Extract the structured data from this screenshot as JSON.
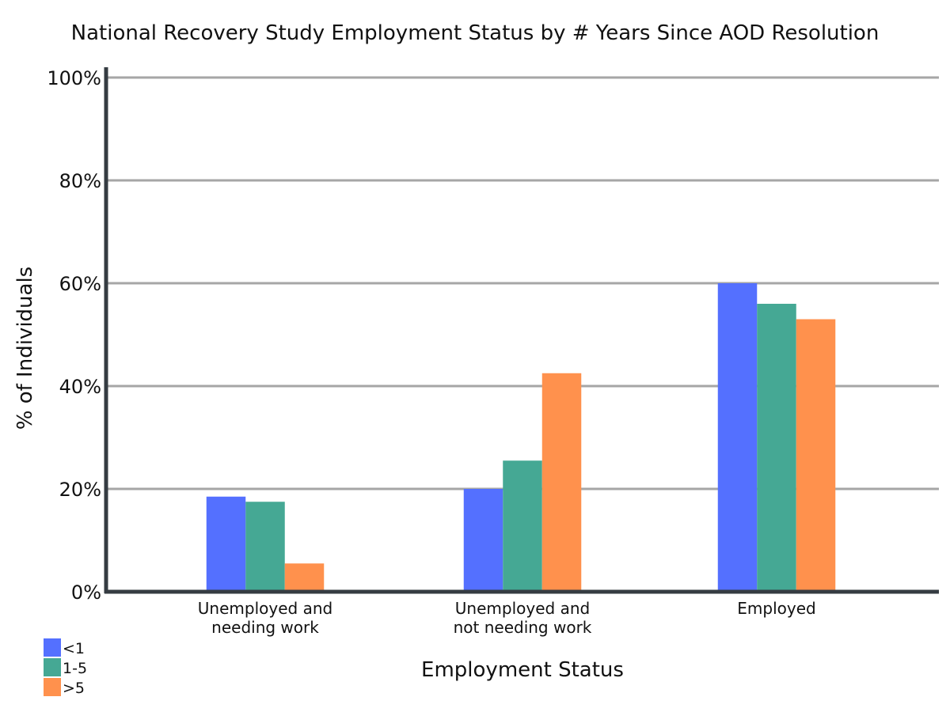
{
  "chart_data": {
    "type": "bar",
    "title": "National Recovery Study Employment Status by # Years Since AOD Resolution",
    "xlabel": "Employment Status",
    "ylabel": "% of Individuals",
    "ylim": [
      0,
      100
    ],
    "yticks": [
      0,
      20,
      40,
      60,
      80,
      100
    ],
    "ytick_labels": [
      "0%",
      "20%",
      "40%",
      "60%",
      "80%",
      "100%"
    ],
    "categories": [
      [
        "Unemployed and",
        "needing work"
      ],
      [
        "Unemployed and",
        "not needing work"
      ],
      [
        "Employed"
      ]
    ],
    "series": [
      {
        "name": "<1",
        "color": "#5470ff",
        "values": [
          18.5,
          20,
          60
        ]
      },
      {
        "name": "1-5",
        "color": "#45a894",
        "values": [
          17.5,
          25.5,
          56
        ]
      },
      {
        "name": ">5",
        "color": "#ff914d",
        "values": [
          5.5,
          42.5,
          53
        ]
      }
    ],
    "grid": true,
    "legend_position": "bottom-left"
  }
}
